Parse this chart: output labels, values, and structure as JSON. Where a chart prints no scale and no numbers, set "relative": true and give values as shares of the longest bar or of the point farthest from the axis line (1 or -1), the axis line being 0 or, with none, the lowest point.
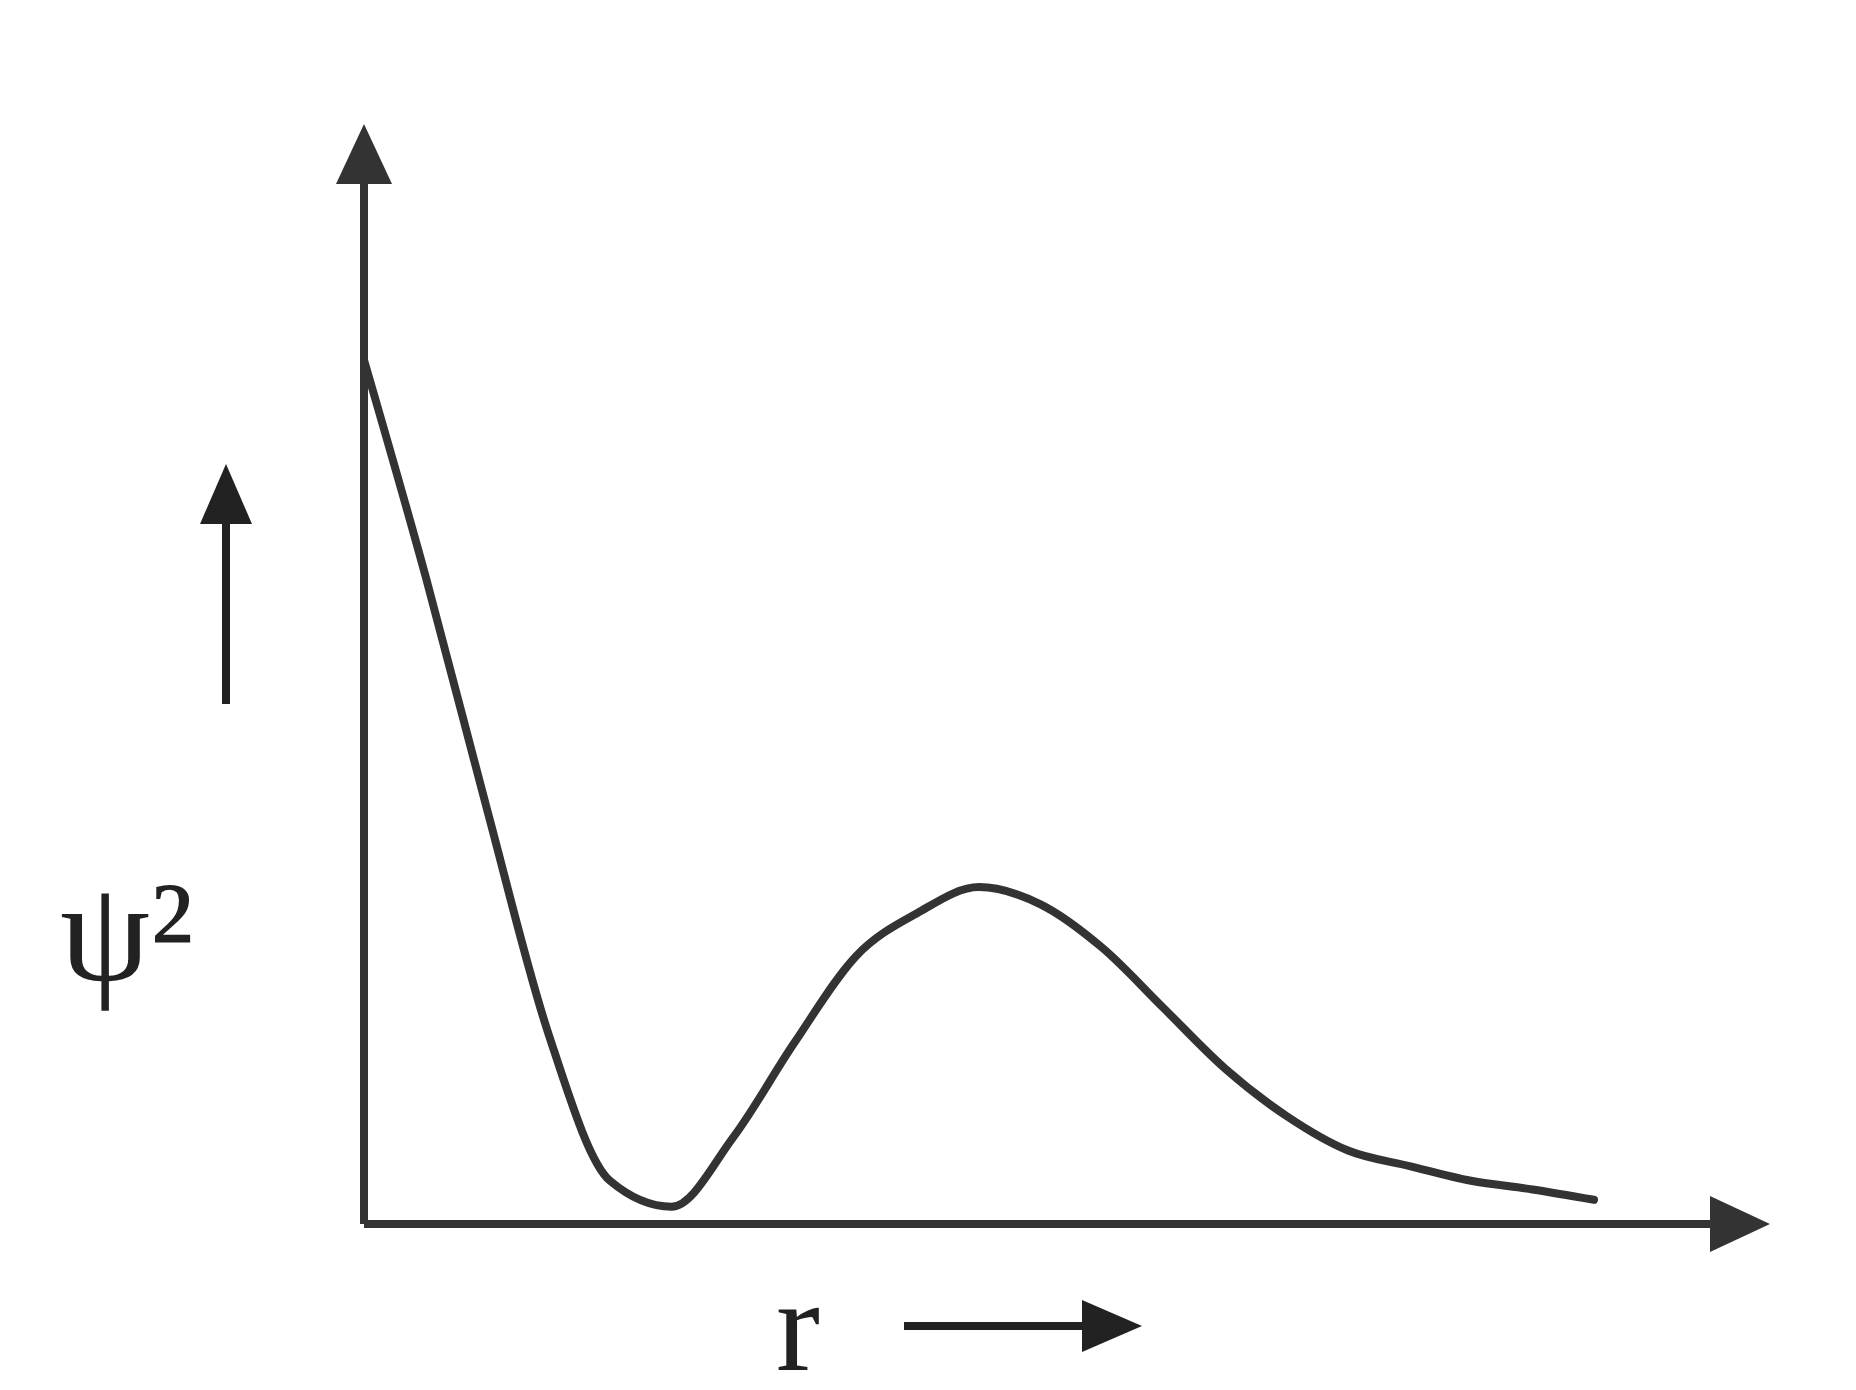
{
  "chart_data": {
    "type": "line",
    "relative": true,
    "xlabel": "r",
    "ylabel": "ψ²",
    "categories": [
      null,
      null,
      null,
      null,
      null,
      null,
      null,
      null,
      null,
      null,
      null,
      null,
      null,
      null,
      null,
      null,
      null,
      null,
      null,
      null,
      null
    ],
    "series": [
      {
        "color": "#333333",
        "values": [
          1.0,
          0.75,
          0.48,
          0.22,
          0.05,
          0.02,
          0.1,
          0.21,
          0.31,
          0.36,
          0.39,
          0.37,
          0.32,
          0.25,
          0.18,
          0.125,
          0.085,
          0.067,
          0.05,
          0.04,
          0.028
        ]
      }
    ]
  }
}
